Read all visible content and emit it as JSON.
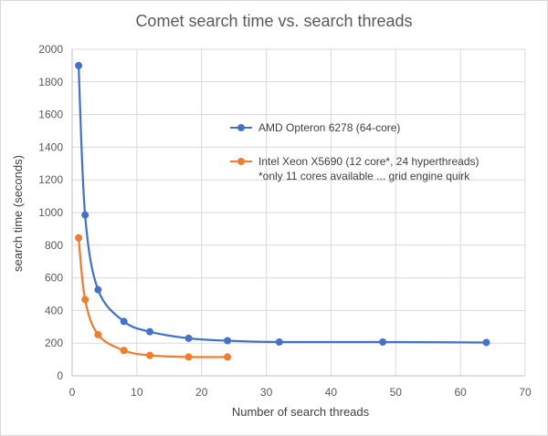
{
  "chart_data": {
    "type": "line",
    "title": "Comet search time vs. search threads",
    "xlabel": "Number of search threads",
    "ylabel": "search time (seconds)",
    "xlim": [
      0,
      70
    ],
    "ylim": [
      0,
      2000
    ],
    "x_ticks": [
      "0",
      "10",
      "20",
      "30",
      "40",
      "50",
      "60",
      "70"
    ],
    "y_ticks": [
      "0",
      "200",
      "400",
      "600",
      "800",
      "1000",
      "1200",
      "1400",
      "1600",
      "1800",
      "2000"
    ],
    "grid": true,
    "legend_position": "right",
    "series": [
      {
        "name": "AMD Opteron 6278 (64-core)",
        "color": "#4472c4",
        "x": [
          1,
          2,
          4,
          8,
          12,
          18,
          24,
          32,
          48,
          64
        ],
        "y": [
          1900,
          985,
          527,
          333,
          270,
          230,
          215,
          207,
          207,
          204
        ]
      },
      {
        "name": "Intel Xeon X5690 (12 core*, 24 hyperthreads)",
        "note": "*only 11 cores available ... grid engine quirk",
        "color": "#ed7d31",
        "x": [
          1,
          2,
          4,
          8,
          12,
          18,
          24
        ],
        "y": [
          845,
          467,
          252,
          155,
          125,
          115,
          115
        ]
      }
    ]
  }
}
